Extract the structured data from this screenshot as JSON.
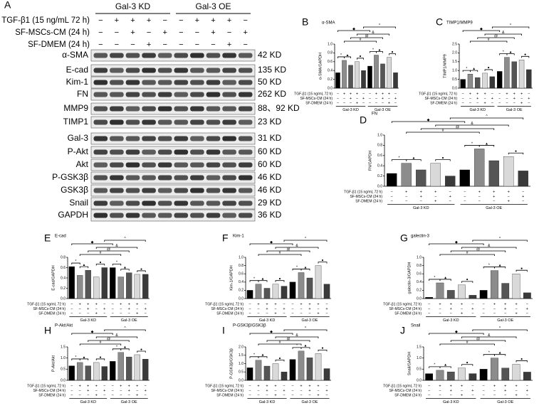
{
  "blot": {
    "panel": "A",
    "proteins": [
      {
        "name": "α-SMA",
        "size": "42 KD"
      },
      {
        "name": "E-cad",
        "size": "135 KD"
      },
      {
        "name": "Kim-1",
        "size": "50 KD"
      },
      {
        "name": "FN",
        "size": "262 KD"
      },
      {
        "name": "MMP9",
        "size": "88、92 KD"
      },
      {
        "name": "TIMP1",
        "size": "23 KD"
      },
      {
        "name": "Gal-3",
        "size": "31 KD"
      },
      {
        "name": "P-Akt",
        "size": "60 KD"
      },
      {
        "name": "Akt",
        "size": "60 KD"
      },
      {
        "name": "P-GSK3β",
        "size": "46 KD"
      },
      {
        "name": "GSK3β",
        "size": "46 KD"
      },
      {
        "name": "Snail",
        "size": "29 KD"
      },
      {
        "name": "GAPDH",
        "size": "36 KD"
      }
    ]
  },
  "conditions": {
    "groups": [
      "Gal-3 KD",
      "Gal-3 OE"
    ],
    "rows": [
      {
        "label": "TGF-β1 (15 ng/mL 72 h)",
        "signs": [
          "−",
          "+",
          "+",
          "+",
          "−",
          "−",
          "+",
          "+",
          "+",
          "−"
        ]
      },
      {
        "label": "SF-MSCs-CM (24 h)",
        "signs": [
          "−",
          "−",
          "+",
          "−",
          "+",
          "−",
          "−",
          "+",
          "−",
          "+"
        ]
      },
      {
        "label": "SF-DMEM (24 h)",
        "signs": [
          "−",
          "−",
          "−",
          "+",
          "−",
          "−",
          "−",
          "−",
          "+",
          "−"
        ]
      }
    ]
  },
  "significance_symbols": [
    "*",
    "▲",
    "●",
    "#",
    "@",
    "&",
    "◆",
    "^"
  ],
  "chart_data": [
    {
      "type": "bar",
      "panel": "B",
      "title": "α-SMA",
      "y_label": "α-SMA/GAPDH",
      "values": [
        0.35,
        0.63,
        0.52,
        0.6,
        0.4,
        0.5,
        0.75,
        0.55,
        0.7,
        0.35
      ],
      "colors": [
        "#000000",
        "#8c8c8c",
        "#555555",
        "#d9d9d9",
        "#3a3a3a"
      ],
      "ylim": [
        0,
        1.0
      ],
      "yticks": [
        {
          "value": 0,
          "label": "0.0"
        },
        {
          "value": 0.2,
          "label": "0.2"
        },
        {
          "value": 0.4,
          "label": "0.4"
        },
        {
          "value": 0.6,
          "label": "0.6"
        },
        {
          "value": 0.8,
          "label": "0.8"
        },
        {
          "value": 1.0,
          "label": "1.0"
        }
      ]
    },
    {
      "type": "bar",
      "panel": "C",
      "title": "TIMP1/MMP9",
      "y_label": "TIMP1/MMP9",
      "values": [
        0.5,
        0.8,
        0.6,
        0.85,
        0.65,
        0.95,
        1.75,
        1.5,
        1.6,
        1.05
      ],
      "colors": [
        "#000000",
        "#8c8c8c",
        "#555555",
        "#d9d9d9",
        "#3a3a3a"
      ],
      "ylim": [
        0,
        2.5
      ],
      "yticks": [
        {
          "value": 0,
          "label": "0.0"
        },
        {
          "value": 0.5,
          "label": "0.5"
        },
        {
          "value": 1.0,
          "label": "1.0"
        },
        {
          "value": 1.5,
          "label": "1.5"
        },
        {
          "value": 2.0,
          "label": "2.0"
        },
        {
          "value": 2.5,
          "label": "2.5"
        }
      ]
    },
    {
      "type": "bar",
      "panel": "D",
      "title": "FN",
      "y_label": "FN/GAPDH",
      "values": [
        0.25,
        0.45,
        0.32,
        0.45,
        0.2,
        0.32,
        0.73,
        0.5,
        0.58,
        0.3
      ],
      "colors": [
        "#000000",
        "#8c8c8c",
        "#555555",
        "#d9d9d9",
        "#3a3a3a"
      ],
      "ylim": [
        0,
        1.0
      ],
      "yticks": [
        {
          "value": 0,
          "label": "0.0"
        },
        {
          "value": 0.2,
          "label": "0.2"
        },
        {
          "value": 0.4,
          "label": "0.4"
        },
        {
          "value": 0.6,
          "label": "0.6"
        },
        {
          "value": 0.8,
          "label": "0.8"
        },
        {
          "value": 1.0,
          "label": "1.0"
        }
      ]
    },
    {
      "type": "bar",
      "panel": "E",
      "title": "E-cad",
      "y_label": "E-cad/GAPDH",
      "values": [
        0.62,
        0.45,
        0.55,
        0.42,
        0.6,
        0.6,
        0.42,
        0.5,
        0.47,
        0.47
      ],
      "colors": [
        "#000000",
        "#8c8c8c",
        "#555555",
        "#d9d9d9",
        "#3a3a3a"
      ],
      "ylim": [
        0,
        0.8
      ],
      "yticks": [
        {
          "value": 0,
          "label": "0.0"
        },
        {
          "value": 0.2,
          "label": "0.2"
        },
        {
          "value": 0.4,
          "label": "0.4"
        },
        {
          "value": 0.6,
          "label": "0.6"
        },
        {
          "value": 0.8,
          "label": "0.8"
        }
      ]
    },
    {
      "type": "bar",
      "panel": "F",
      "title": "Kim-1",
      "y_label": "Kim-1/GAPDH",
      "values": [
        0.2,
        0.35,
        0.25,
        0.35,
        0.3,
        0.4,
        0.63,
        0.5,
        0.8,
        0.35
      ],
      "colors": [
        "#000000",
        "#8c8c8c",
        "#555555",
        "#d9d9d9",
        "#3a3a3a"
      ],
      "ylim": [
        0,
        1.0
      ],
      "yticks": [
        {
          "value": 0,
          "label": "0.0"
        },
        {
          "value": 0.2,
          "label": "0.2"
        },
        {
          "value": 0.4,
          "label": "0.4"
        },
        {
          "value": 0.6,
          "label": "0.6"
        },
        {
          "value": 0.8,
          "label": "0.8"
        },
        {
          "value": 1.0,
          "label": "1.0"
        }
      ]
    },
    {
      "type": "bar",
      "panel": "G",
      "title": "galectin-3",
      "y_label": "galectin-3/GAPDH",
      "values": [
        0.03,
        0.38,
        0.2,
        0.33,
        0.08,
        0.2,
        0.68,
        0.37,
        0.6,
        0.14
      ],
      "colors": [
        "#000000",
        "#8c8c8c",
        "#555555",
        "#d9d9d9",
        "#3a3a3a"
      ],
      "ylim": [
        0,
        1.0
      ],
      "yticks": [
        {
          "value": 0,
          "label": "0.0"
        },
        {
          "value": 0.2,
          "label": "0.2"
        },
        {
          "value": 0.4,
          "label": "0.4"
        },
        {
          "value": 0.6,
          "label": "0.6"
        },
        {
          "value": 0.8,
          "label": "0.8"
        },
        {
          "value": 1.0,
          "label": "1.0"
        }
      ]
    },
    {
      "type": "bar",
      "panel": "H",
      "title": "P-Akt/Akt",
      "y_label": "P-Akt/Akt",
      "values": [
        0.65,
        0.8,
        0.65,
        0.8,
        0.62,
        0.85,
        1.25,
        1.05,
        1.15,
        0.95
      ],
      "colors": [
        "#000000",
        "#8c8c8c",
        "#555555",
        "#d9d9d9",
        "#3a3a3a"
      ],
      "ylim": [
        0,
        1.5
      ],
      "yticks": [
        {
          "value": 0,
          "label": "0.0"
        },
        {
          "value": 0.5,
          "label": "0.5"
        },
        {
          "value": 1.0,
          "label": "1.0"
        },
        {
          "value": 1.5,
          "label": "1.5"
        }
      ]
    },
    {
      "type": "bar",
      "panel": "I",
      "title": "P-GSK3β/GSK3β",
      "y_label": "P-GSK3β/GSK3β",
      "values": [
        0.75,
        1.2,
        0.85,
        1.0,
        0.5,
        1.25,
        1.75,
        1.35,
        1.6,
        0.7
      ],
      "colors": [
        "#000000",
        "#8c8c8c",
        "#555555",
        "#d9d9d9",
        "#3a3a3a"
      ],
      "ylim": [
        0,
        2.0
      ],
      "yticks": [
        {
          "value": 0,
          "label": "0.0"
        },
        {
          "value": 0.5,
          "label": "0.5"
        },
        {
          "value": 1.0,
          "label": "1.0"
        },
        {
          "value": 1.5,
          "label": "1.5"
        },
        {
          "value": 2.0,
          "label": "2.0"
        }
      ]
    },
    {
      "type": "bar",
      "panel": "J",
      "title": "Snail",
      "y_label": "Snail/GAPDH",
      "values": [
        0.3,
        0.45,
        0.38,
        0.55,
        0.3,
        0.5,
        1.0,
        0.55,
        0.72,
        0.37
      ],
      "colors": [
        "#000000",
        "#8c8c8c",
        "#555555",
        "#d9d9d9",
        "#3a3a3a"
      ],
      "ylim": [
        0,
        1.5
      ],
      "yticks": [
        {
          "value": 0,
          "label": "0.0"
        },
        {
          "value": 0.5,
          "label": "0.5"
        },
        {
          "value": 1.0,
          "label": "1.0"
        },
        {
          "value": 1.5,
          "label": "1.5"
        }
      ]
    }
  ]
}
